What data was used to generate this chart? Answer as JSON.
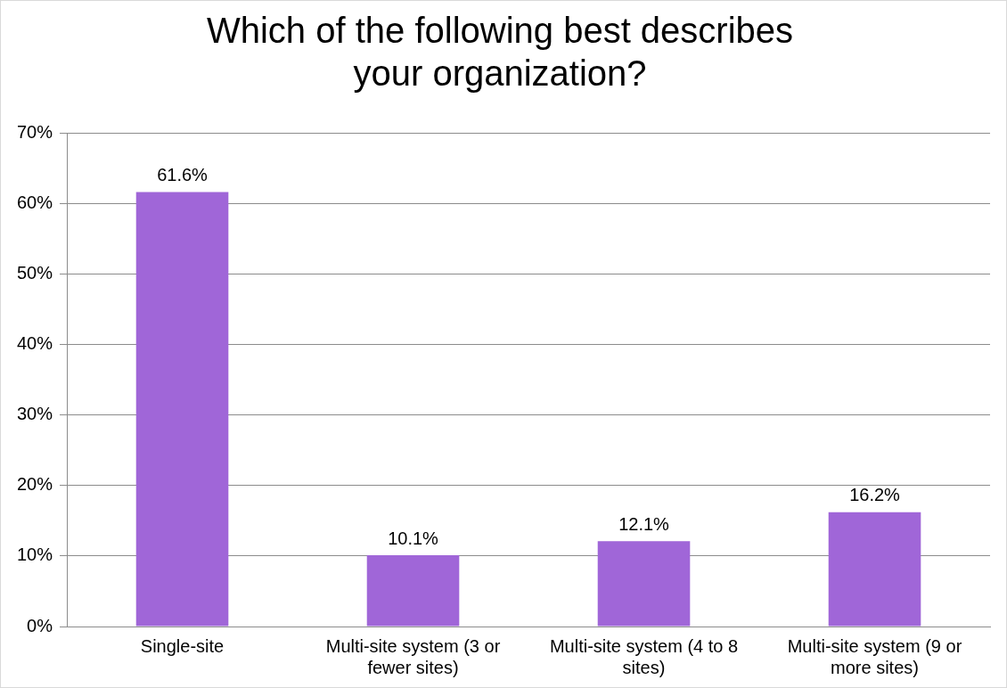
{
  "chart_data": {
    "type": "bar",
    "title": "Which of the following best describes your organization?",
    "categories": [
      "Single-site",
      "Multi-site system (3 or fewer sites)",
      "Multi-site system (4 to 8 sites)",
      "Multi-site system (9 or more sites)"
    ],
    "values": [
      61.6,
      10.1,
      12.1,
      16.2
    ],
    "value_labels": [
      "61.6%",
      "10.1%",
      "12.1%",
      "16.2%"
    ],
    "color": "#a066d8",
    "ylim": [
      0,
      70
    ],
    "yticks": [
      {
        "value": 0,
        "label": "0%"
      },
      {
        "value": 10,
        "label": "10%"
      },
      {
        "value": 20,
        "label": "20%"
      },
      {
        "value": 30,
        "label": "30%"
      },
      {
        "value": 40,
        "label": "40%"
      },
      {
        "value": 50,
        "label": "50%"
      },
      {
        "value": 60,
        "label": "60%"
      },
      {
        "value": 70,
        "label": "70%"
      }
    ],
    "grid": "y",
    "legend": false
  }
}
